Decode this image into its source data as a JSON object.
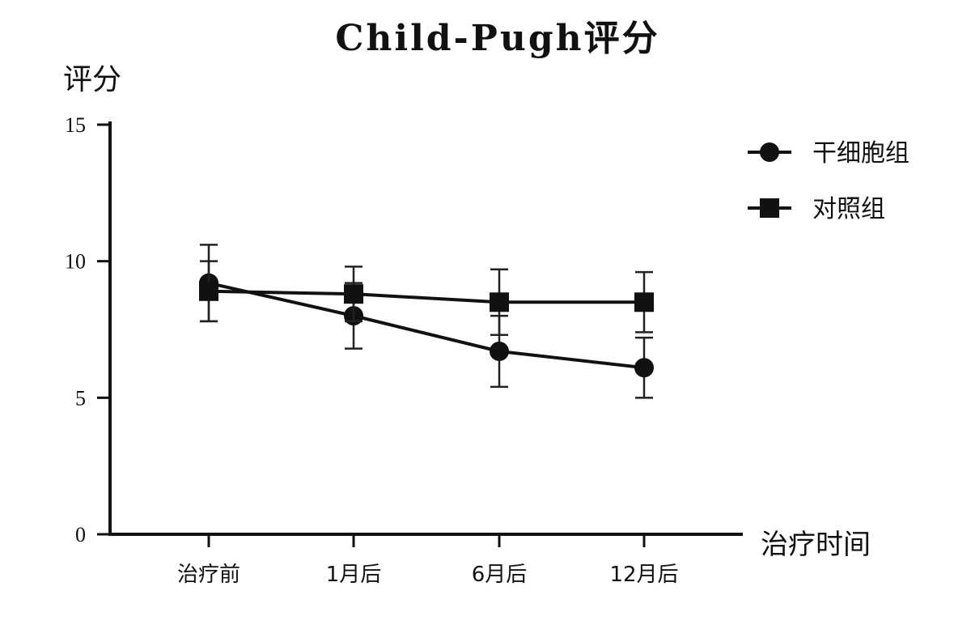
{
  "chart_data": {
    "type": "line",
    "title": "Child-Pugh评分",
    "ylabel": "评分",
    "xlabel": "治疗时间",
    "categories": [
      "治疗前",
      "1月后",
      "6月后",
      "12月后"
    ],
    "ylim": [
      0,
      15
    ],
    "yticks": [
      "0",
      "5",
      "10",
      "15"
    ],
    "legend_position": "top-right",
    "series": [
      {
        "name": "干细胞组",
        "marker": "circle",
        "values": [
          9.2,
          8.0,
          6.7,
          6.1
        ],
        "error": [
          1.4,
          1.2,
          1.3,
          1.1
        ]
      },
      {
        "name": "对照组",
        "marker": "square",
        "values": [
          8.9,
          8.8,
          8.5,
          8.5
        ],
        "error": [
          1.1,
          1.0,
          1.2,
          1.1
        ]
      }
    ],
    "colors": {
      "line": "#111111"
    }
  }
}
